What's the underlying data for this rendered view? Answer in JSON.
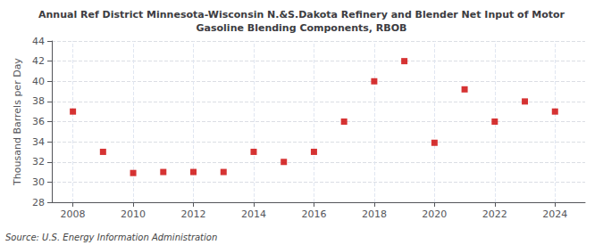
{
  "chart_data": {
    "type": "scatter",
    "title": "Annual Ref District Minnesota-Wisconsin N.&S.Dakota Refinery and Blender Net Input of Motor\nGasoline Blending Components, RBOB",
    "ylabel": "Thousand Barrels per Day",
    "annotations": [
      "Source: U.S. Energy Information Administration"
    ],
    "x": [
      2008,
      2009,
      2010,
      2011,
      2012,
      2013,
      2014,
      2015,
      2016,
      2017,
      2018,
      2019,
      2020,
      2021,
      2022,
      2023,
      2024
    ],
    "values": [
      37.0,
      33.0,
      30.9,
      31.0,
      31.0,
      31.0,
      33.0,
      32.0,
      33.0,
      36.0,
      40.0,
      42.0,
      33.9,
      39.2,
      36.0,
      38.0,
      37.0
    ],
    "color": "#cc0000",
    "marker": "square",
    "xlim": [
      2007.3,
      2025.0
    ],
    "xticks": [
      2008,
      2010,
      2012,
      2014,
      2016,
      2018,
      2020,
      2022,
      2024
    ],
    "ylim": [
      28,
      44
    ],
    "yticks": [
      28,
      30,
      32,
      34,
      36,
      38,
      40,
      42,
      44
    ],
    "grid": true
  }
}
